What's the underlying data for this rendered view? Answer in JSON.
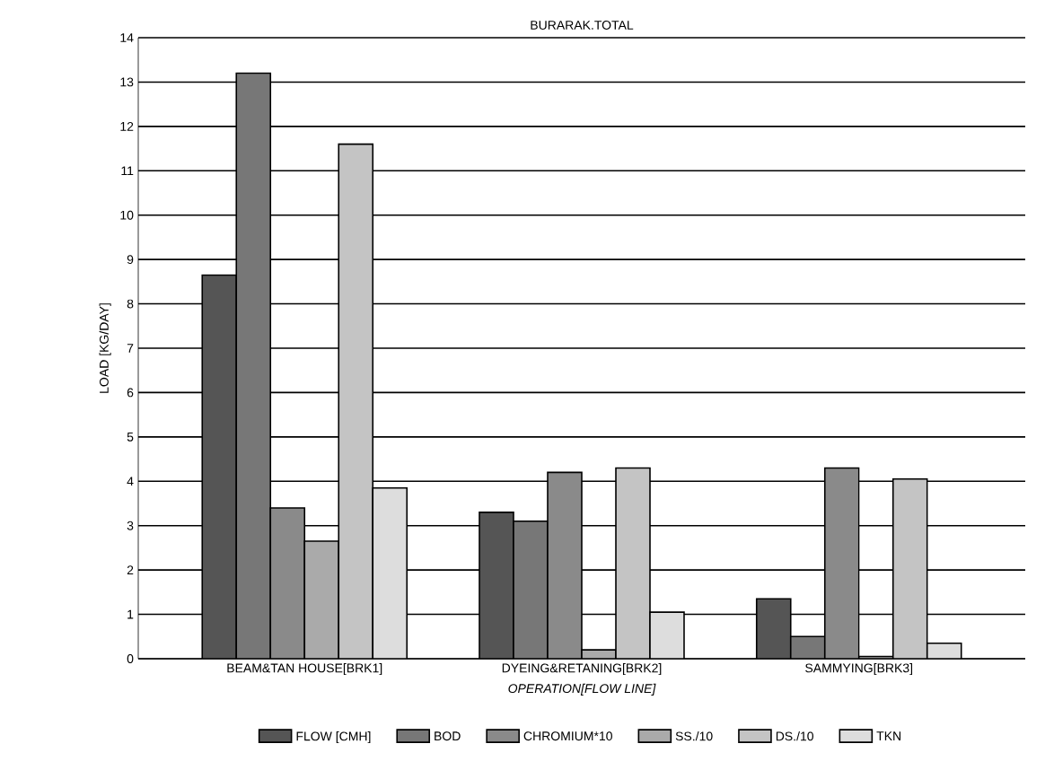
{
  "chart_data": {
    "type": "bar",
    "title": "BURARAK.TOTAL",
    "xlabel": "OPERATION[FLOW LINE]",
    "ylabel": "LOAD  [KG/DAY]",
    "categories": [
      "BEAM&TAN HOUSE[BRK1]",
      "DYEING&RETANING[BRK2]",
      "SAMMYING[BRK3]"
    ],
    "series": [
      {
        "name": "FLOW [CMH]",
        "color": "#555555",
        "values": [
          8.65,
          3.3,
          1.35
        ]
      },
      {
        "name": "BOD",
        "color": "#777777",
        "values": [
          13.2,
          3.1,
          0.5
        ]
      },
      {
        "name": "CHROMIUM*10",
        "color": "#8a8a8a",
        "values": [
          3.4,
          4.2,
          4.3
        ]
      },
      {
        "name": "SS./10",
        "color": "#aaaaaa",
        "values": [
          2.65,
          0.2,
          0.05
        ]
      },
      {
        "name": "DS./10",
        "color": "#c4c4c4",
        "values": [
          11.6,
          4.3,
          4.05
        ]
      },
      {
        "name": "TKN",
        "color": "#dddddd",
        "values": [
          3.85,
          1.05,
          0.35
        ]
      }
    ],
    "ylim": [
      0,
      14
    ],
    "yticks": [
      0,
      1,
      2,
      3,
      4,
      5,
      6,
      7,
      8,
      9,
      10,
      11,
      12,
      13,
      14
    ],
    "grid": "y",
    "legend": "bottom"
  }
}
